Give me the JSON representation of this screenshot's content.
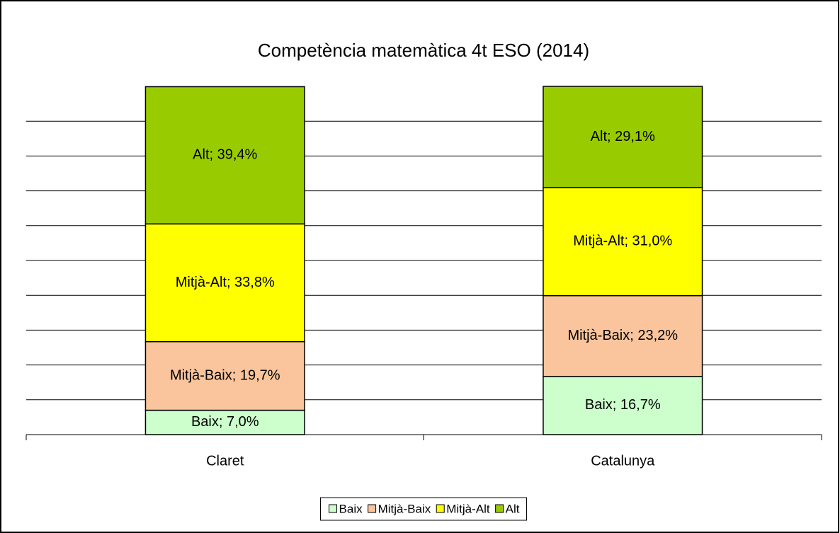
{
  "chart_data": {
    "type": "stacked_bar",
    "title": "Competència  matemàtica 4t ESO (2014)",
    "categories": [
      "Claret",
      "Catalunya"
    ],
    "series": [
      {
        "name": "Baix",
        "color": "#ccffcc",
        "values": [
          7.0,
          16.7
        ],
        "value_labels": [
          "Baix; 7,0%",
          "Baix; 16,7%"
        ]
      },
      {
        "name": "Mitjà-Baix",
        "color": "#fac59c",
        "values": [
          19.7,
          23.2
        ],
        "value_labels": [
          "Mitjà-Baix; 19,7%",
          "Mitjà-Baix; 23,2%"
        ]
      },
      {
        "name": "Mitjà-Alt",
        "color": "#ffff00",
        "values": [
          33.8,
          31.0
        ],
        "value_labels": [
          "Mitjà-Alt; 33,8%",
          "Mitjà-Alt; 31,0%"
        ]
      },
      {
        "name": "Alt",
        "color": "#99cc00",
        "values": [
          39.4,
          29.1
        ],
        "value_labels": [
          "Alt; 39,4%",
          "Alt; 29,1%"
        ]
      }
    ],
    "ylim": [
      0,
      100
    ],
    "yticks": [
      0,
      10,
      20,
      30,
      40,
      50,
      60,
      70,
      80,
      90
    ],
    "grid": true,
    "legend": "bottom"
  }
}
